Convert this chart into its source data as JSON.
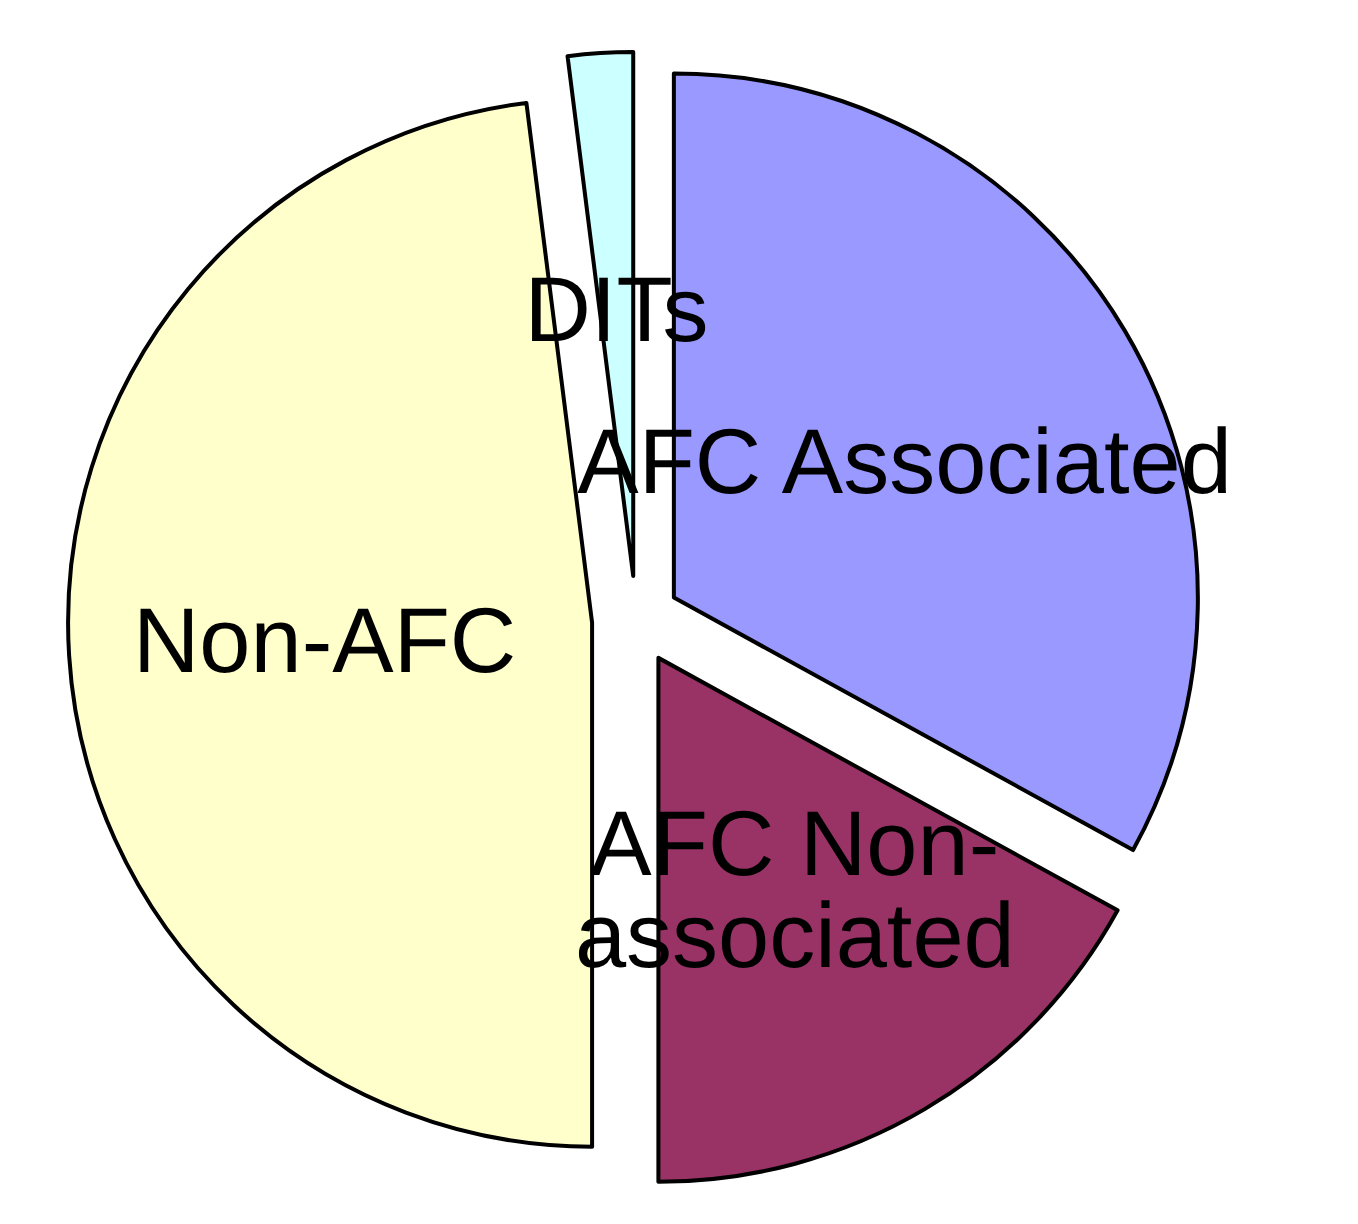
{
  "chart_data": {
    "type": "pie",
    "categories": [
      "AFC Associated",
      "AFC Non-associated",
      "Non-AFC",
      "DITs"
    ],
    "values": [
      33,
      17,
      48,
      2
    ],
    "colors": [
      "#9999ff",
      "#993366",
      "#ffffcc",
      "#ccffff"
    ],
    "legend": false
  }
}
